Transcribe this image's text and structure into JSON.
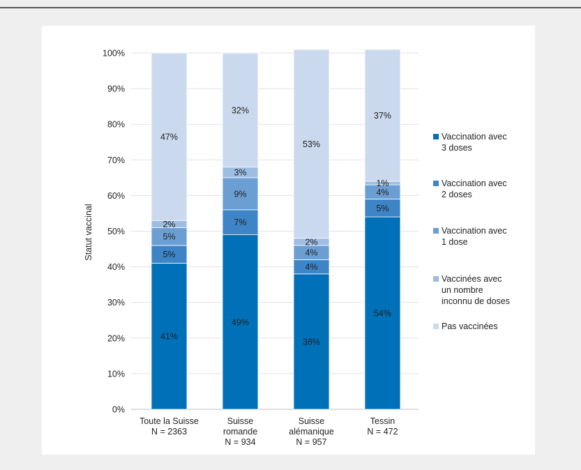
{
  "chart_data": {
    "type": "stacked-bar",
    "ylabel": "Statut vaccinal",
    "ylim": [
      0,
      100
    ],
    "y_ticks": [
      "0%",
      "10%",
      "20%",
      "30%",
      "40%",
      "50%",
      "60%",
      "70%",
      "80%",
      "90%",
      "100%"
    ],
    "categories": [
      [
        "Toute la Suisse",
        "N = 2363"
      ],
      [
        "Suisse",
        "romande",
        "N = 934"
      ],
      [
        "Suisse",
        "alémanique",
        "N = 957"
      ],
      [
        "Tessin",
        "N = 472"
      ]
    ],
    "series": [
      {
        "name": "Vaccination avec 3 doses",
        "color": "#0070b8",
        "values": [
          41,
          49,
          38,
          54
        ],
        "labels": [
          "41%",
          "49%",
          "38%",
          "54%"
        ]
      },
      {
        "name": "Vaccination avec 2 doses",
        "color": "#3d85c6",
        "values": [
          5,
          7,
          4,
          5
        ],
        "labels": [
          "5%",
          "7%",
          "4%",
          "5%"
        ]
      },
      {
        "name": "Vaccination avec 1 dose",
        "color": "#6b9fd4",
        "values": [
          5,
          9,
          4,
          4
        ],
        "labels": [
          "5%",
          "9%",
          "4%",
          "4%"
        ]
      },
      {
        "name": "Vaccinées avec un nombre inconnu de doses",
        "color": "#9dbde3",
        "values": [
          2,
          3,
          2,
          1
        ],
        "labels": [
          "2%",
          "3%",
          "2%",
          "1%"
        ]
      },
      {
        "name": "Pas vaccinées",
        "color": "#cbd9ef",
        "values": [
          47,
          32,
          53,
          37
        ],
        "labels": [
          "47%",
          "32%",
          "53%",
          "37%"
        ]
      }
    ],
    "grid": true,
    "legend_position": "right"
  },
  "legend": [
    {
      "line1": "Vaccination avec",
      "line2": "3 doses",
      "line3": ""
    },
    {
      "line1": "Vaccination avec",
      "line2": "2 doses",
      "line3": ""
    },
    {
      "line1": "Vaccination avec",
      "line2": "1 dose",
      "line3": ""
    },
    {
      "line1": "Vaccinées avec",
      "line2": "un nombre",
      "line3": "inconnu de doses"
    },
    {
      "line1": "Pas vaccinées",
      "line2": "",
      "line3": ""
    }
  ]
}
